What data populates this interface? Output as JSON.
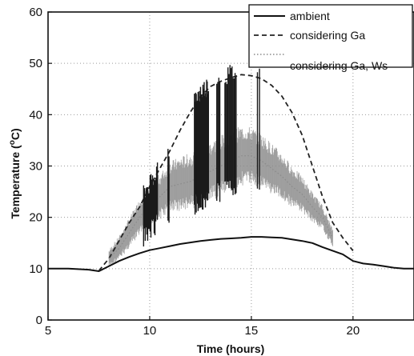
{
  "chart_data": {
    "type": "line",
    "xlabel": "Time (hours)",
    "ylabel_main": "Temperature (",
    "ylabel_sup": "o",
    "ylabel_end": "C)",
    "xlim": [
      5,
      23
    ],
    "ylim": [
      0,
      60
    ],
    "xticks": [
      5,
      10,
      15,
      20
    ],
    "yticks": [
      0,
      10,
      20,
      30,
      40,
      50,
      60
    ],
    "grid": true,
    "legend_position": "top-right",
    "series": [
      {
        "name": "ambient",
        "style": "solid",
        "color": "#111111",
        "x": [
          5,
          6,
          7,
          7.5,
          8,
          8.5,
          9,
          9.5,
          10,
          10.5,
          11,
          11.5,
          12,
          12.5,
          13,
          13.5,
          14,
          14.5,
          15,
          15.5,
          16,
          16.5,
          17,
          17.5,
          18,
          18.5,
          19,
          19.5,
          20,
          20.5,
          21,
          21.5,
          22,
          22.5,
          23
        ],
        "y": [
          10,
          10,
          9.8,
          9.5,
          10.5,
          11.5,
          12.3,
          13,
          13.6,
          14,
          14.4,
          14.8,
          15.1,
          15.4,
          15.6,
          15.8,
          15.9,
          16,
          16.2,
          16.2,
          16.1,
          16,
          15.7,
          15.4,
          15,
          14.2,
          13.5,
          12.8,
          11.5,
          11,
          10.8,
          10.5,
          10.2,
          10,
          10
        ]
      },
      {
        "name": "considering Ga",
        "style": "dashed",
        "color": "#222222",
        "x": [
          7.5,
          8,
          8.5,
          9,
          9.5,
          10,
          10.5,
          11,
          11.5,
          12,
          12.5,
          13,
          13.5,
          14,
          14.5,
          15,
          15.5,
          16,
          16.5,
          17,
          17.5,
          18,
          18.5,
          19,
          19.5,
          20
        ],
        "y": [
          9.6,
          12,
          15.5,
          19,
          22,
          26,
          29.5,
          33,
          37,
          40.5,
          43.5,
          45.5,
          46.5,
          47.2,
          47.8,
          47.6,
          47,
          45.7,
          43.6,
          40.4,
          36,
          30,
          24,
          19,
          16,
          13.5
        ]
      },
      {
        "name": "considering Ga, Ws",
        "style": "dotted-noisy",
        "color": "#8a8a8a",
        "x": [
          8,
          8.5,
          9,
          9.5,
          10,
          10.5,
          11,
          11.5,
          12,
          12.5,
          13,
          13.5,
          14,
          14.5,
          15,
          15.5,
          16,
          16.5,
          17,
          17.5,
          18,
          18.5,
          19
        ],
        "y": [
          12,
          14,
          17,
          20,
          22.5,
          24,
          26,
          26.5,
          27,
          28,
          29,
          30,
          31,
          32,
          32,
          31,
          29.5,
          28,
          26,
          24.5,
          22,
          20,
          16
        ]
      }
    ]
  },
  "colors": {
    "background": "#ffffff",
    "grid": "#9a9a9a",
    "spike": "#1a1a1a"
  }
}
